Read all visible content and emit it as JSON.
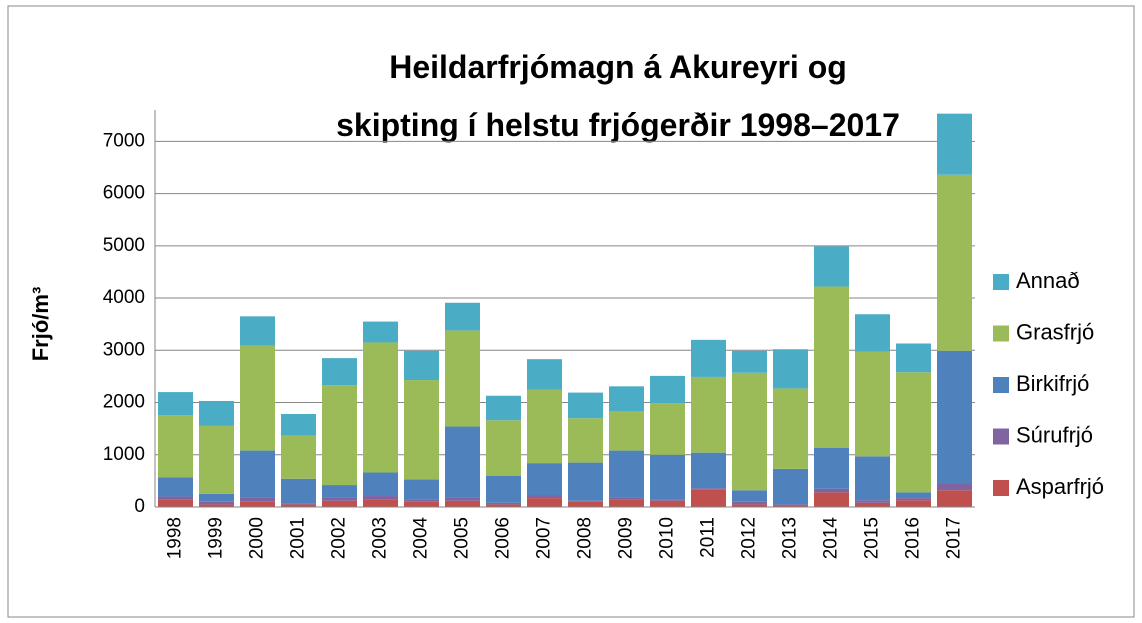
{
  "chart_data": {
    "type": "stacked_bar",
    "title": "Heildarfrjómagn á Akureyri og skipting í helstu frjógerðir 1998–2017",
    "y_label": "Frjó/m³",
    "categories": [
      "1998",
      "1999",
      "2000",
      "2001",
      "2002",
      "2003",
      "2004",
      "2005",
      "2006",
      "2007",
      "2008",
      "2009",
      "2010",
      "2011",
      "2012",
      "2013",
      "2014",
      "2015",
      "2016",
      "2017"
    ],
    "series": [
      {
        "name": "Asparfrjó",
        "color": "#c0504d",
        "values": [
          150,
          50,
          100,
          50,
          120,
          150,
          100,
          120,
          50,
          170,
          100,
          150,
          120,
          330,
          50,
          30,
          280,
          80,
          130,
          320
        ]
      },
      {
        "name": "Súrufrjó",
        "color": "#8064a2",
        "values": [
          50,
          50,
          80,
          20,
          60,
          60,
          50,
          60,
          30,
          50,
          20,
          30,
          30,
          30,
          50,
          20,
          70,
          50,
          40,
          120
        ]
      },
      {
        "name": "Birkifrjó",
        "color": "#4f81bd",
        "values": [
          370,
          150,
          900,
          470,
          240,
          450,
          380,
          1360,
          520,
          620,
          730,
          900,
          850,
          680,
          220,
          680,
          780,
          840,
          110,
          2550
        ]
      },
      {
        "name": "Grasfrjó",
        "color": "#9bbb59",
        "values": [
          1190,
          1310,
          2010,
          830,
          1910,
          2490,
          1900,
          1840,
          1060,
          1410,
          850,
          750,
          990,
          1450,
          2250,
          1540,
          3090,
          2000,
          2300,
          3370
        ]
      },
      {
        "name": "Annað",
        "color": "#4bacc6",
        "values": [
          440,
          470,
          560,
          410,
          520,
          400,
          560,
          530,
          470,
          580,
          490,
          480,
          520,
          710,
          420,
          750,
          770,
          720,
          550,
          1170
        ]
      }
    ],
    "ylim": [
      0,
      7600
    ],
    "yticks": [
      0,
      1000,
      2000,
      3000,
      4000,
      5000,
      6000,
      7000
    ],
    "grid": true,
    "legend": "right"
  }
}
